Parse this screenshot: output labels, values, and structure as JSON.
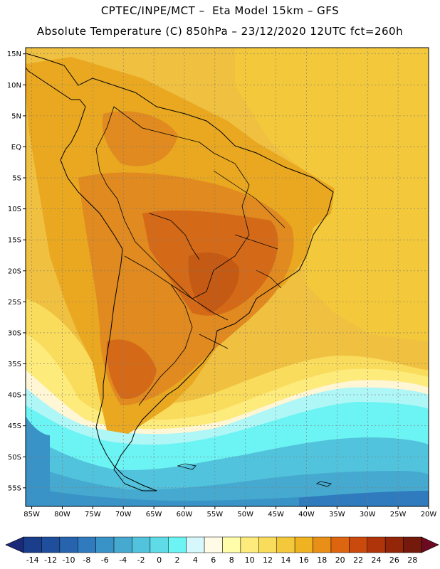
{
  "header": {
    "title_line1": "CPTEC/INPE/MCT –  Eta Model 15km – GFS",
    "title_line2": "Absolute Temperature (C) 850hPa – 23/12/2020 12UTC fct=260h"
  },
  "map": {
    "lon_range": [
      -86,
      -20
    ],
    "lat_range": [
      -58,
      16
    ],
    "lon_ticks": [
      {
        "value": -85,
        "label": "85W"
      },
      {
        "value": -80,
        "label": "80W"
      },
      {
        "value": -75,
        "label": "75W"
      },
      {
        "value": -70,
        "label": "70W"
      },
      {
        "value": -65,
        "label": "65W"
      },
      {
        "value": -60,
        "label": "60W"
      },
      {
        "value": -55,
        "label": "55W"
      },
      {
        "value": -50,
        "label": "50W"
      },
      {
        "value": -45,
        "label": "45W"
      },
      {
        "value": -40,
        "label": "40W"
      },
      {
        "value": -35,
        "label": "35W"
      },
      {
        "value": -30,
        "label": "30W"
      },
      {
        "value": -25,
        "label": "25W"
      },
      {
        "value": -20,
        "label": "20W"
      }
    ],
    "lat_ticks": [
      {
        "value": 15,
        "label": "15N"
      },
      {
        "value": 10,
        "label": "10N"
      },
      {
        "value": 5,
        "label": "5N"
      },
      {
        "value": 0,
        "label": "EQ"
      },
      {
        "value": -5,
        "label": "5S"
      },
      {
        "value": -10,
        "label": "10S"
      },
      {
        "value": -15,
        "label": "15S"
      },
      {
        "value": -20,
        "label": "20S"
      },
      {
        "value": -25,
        "label": "25S"
      },
      {
        "value": -30,
        "label": "30S"
      },
      {
        "value": -35,
        "label": "35S"
      },
      {
        "value": -40,
        "label": "40S"
      },
      {
        "value": -45,
        "label": "45S"
      },
      {
        "value": -50,
        "label": "50S"
      },
      {
        "value": -55,
        "label": "55S"
      }
    ]
  },
  "colorbar": {
    "labels": [
      "-14",
      "-12",
      "-10",
      "-8",
      "-6",
      "-4",
      "-2",
      "0",
      "2",
      "4",
      "6",
      "8",
      "10",
      "12",
      "14",
      "16",
      "18",
      "20",
      "22",
      "24",
      "26",
      "28"
    ],
    "colors": [
      "#1a3d8c",
      "#1f4f9c",
      "#2764ad",
      "#2f7bbd",
      "#3a93c7",
      "#46aad0",
      "#52c3dc",
      "#5edbe6",
      "#6cf3f3",
      "#d6f7fb",
      "#fffbe6",
      "#fffcaa",
      "#fdeb7c",
      "#f9dc5c",
      "#f3c83a",
      "#efb220",
      "#e98f18",
      "#dd6510",
      "#c94a0c",
      "#b0340a",
      "#932608",
      "#741a0c"
    ],
    "under_color": "#1a2a78",
    "over_color": "#6b0a20"
  },
  "colors": {
    "sea_warm": "#f0c040",
    "land_base": "#e9a820",
    "land_hot": "#e08a20",
    "hot_core": "#d46a18",
    "hottest": "#c45a14",
    "cool_shelf": "#f6dd80",
    "pale": "#fff6d6",
    "cyan_light": "#aff6f6",
    "cyan": "#6cf3f3",
    "teal": "#46c7d8",
    "blue": "#3a93c7",
    "deep_blue": "#2f7bbd"
  }
}
